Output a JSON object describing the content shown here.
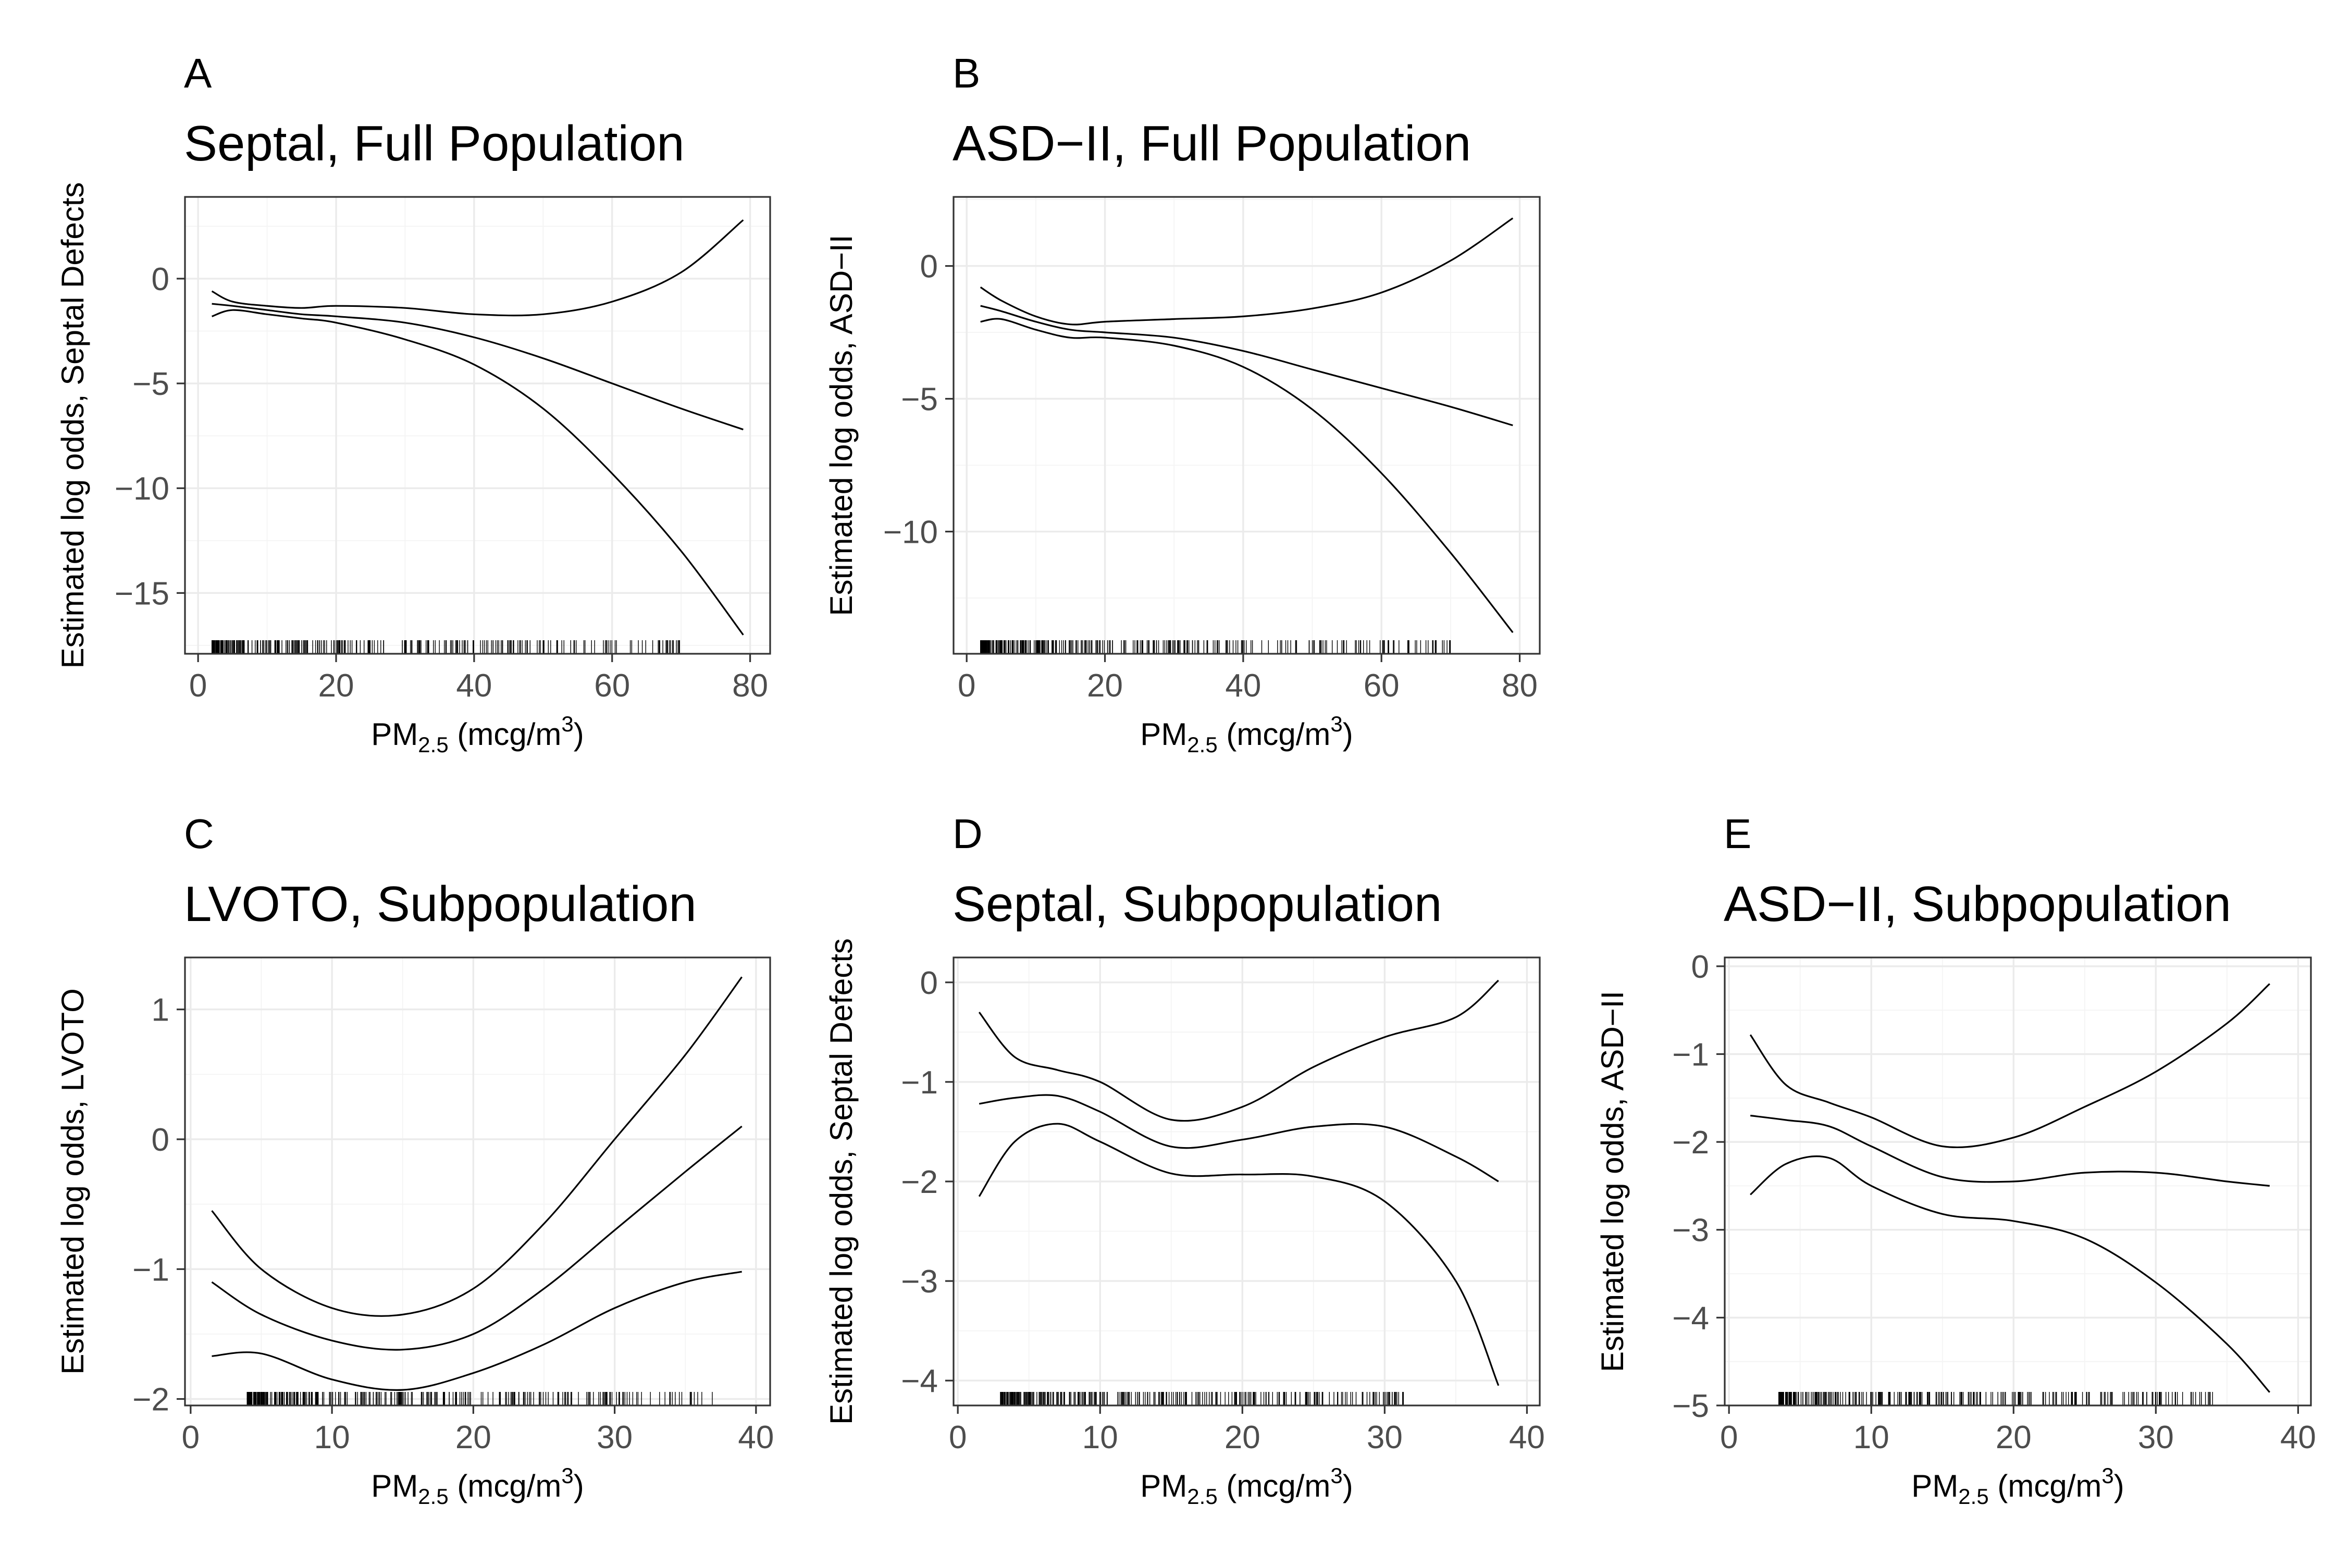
{
  "panels": [
    {
      "letter": "A",
      "title": "Septal, Full Population",
      "ylabel": "Estimated log odds, Septal Defects",
      "xlabel": "PM2.5 (mcg/m3)",
      "xlim": [
        -1.9,
        82.9
      ],
      "ylim": [
        -17.9,
        3.9
      ],
      "xticks": [
        0,
        20,
        40,
        60,
        80
      ],
      "yticks": [
        0,
        -5,
        -10,
        -15
      ],
      "xtick_labels": [
        "0",
        "20",
        "40",
        "60",
        "80"
      ],
      "ytick_labels": [
        "0",
        "−5",
        "−10",
        "−15"
      ],
      "rug_range": [
        2,
        70
      ],
      "x": [
        2,
        5,
        10,
        15,
        20,
        30,
        40,
        50,
        60,
        70,
        79
      ],
      "fit": [
        -1.2,
        -1.3,
        -1.5,
        -1.7,
        -1.8,
        -2.1,
        -2.8,
        -3.8,
        -5.0,
        -6.2,
        -7.2
      ],
      "upper": [
        -0.6,
        -1.1,
        -1.3,
        -1.4,
        -1.3,
        -1.4,
        -1.7,
        -1.7,
        -1.1,
        0.3,
        2.8
      ],
      "lower": [
        -1.8,
        -1.5,
        -1.7,
        -1.9,
        -2.1,
        -2.9,
        -4.1,
        -6.2,
        -9.3,
        -13.0,
        -17.0
      ]
    },
    {
      "letter": "B",
      "title": "ASD−II, Full Population",
      "ylabel": "Estimated log odds, ASD−II",
      "xlabel": "PM2.5 (mcg/m3)",
      "xlim": [
        -1.9,
        82.9
      ],
      "ylim": [
        -14.6,
        2.6
      ],
      "xticks": [
        0,
        20,
        40,
        60,
        80
      ],
      "yticks": [
        0,
        -5,
        -10
      ],
      "xtick_labels": [
        "0",
        "20",
        "40",
        "60",
        "80"
      ],
      "ytick_labels": [
        "0",
        "−5",
        "−10"
      ],
      "rug_range": [
        2,
        70
      ],
      "x": [
        2,
        5,
        10,
        15,
        20,
        30,
        40,
        50,
        60,
        70,
        79
      ],
      "fit": [
        -1.5,
        -1.7,
        -2.1,
        -2.4,
        -2.5,
        -2.7,
        -3.2,
        -3.9,
        -4.6,
        -5.3,
        -6.0
      ],
      "upper": [
        -0.8,
        -1.3,
        -1.9,
        -2.2,
        -2.1,
        -2.0,
        -1.9,
        -1.6,
        -1.0,
        0.2,
        1.8
      ],
      "lower": [
        -2.1,
        -2.0,
        -2.4,
        -2.7,
        -2.7,
        -3.0,
        -3.8,
        -5.4,
        -7.8,
        -10.8,
        -13.8
      ]
    },
    {
      "letter": "C",
      "title": "LVOTO, Subpopulation",
      "ylabel": "Estimated log odds, LVOTO",
      "xlabel": "PM2.5 (mcg/m3)",
      "xlim": [
        -0.4,
        41.0
      ],
      "ylim": [
        -2.05,
        1.4
      ],
      "xticks": [
        0,
        10,
        20,
        30,
        40
      ],
      "yticks": [
        1,
        0,
        -1,
        -2
      ],
      "xtick_labels": [
        "0",
        "10",
        "20",
        "30",
        "40"
      ],
      "ytick_labels": [
        "1",
        "0",
        "−1",
        "−2"
      ],
      "rug_range": [
        4,
        37
      ],
      "x": [
        1.5,
        5,
        10,
        15,
        20,
        25,
        30,
        35,
        39
      ],
      "fit": [
        -1.1,
        -1.35,
        -1.55,
        -1.62,
        -1.5,
        -1.15,
        -0.7,
        -0.25,
        0.1
      ],
      "upper": [
        -0.55,
        -1.0,
        -1.3,
        -1.35,
        -1.15,
        -0.65,
        0.0,
        0.65,
        1.25
      ],
      "lower": [
        -1.67,
        -1.65,
        -1.85,
        -1.93,
        -1.8,
        -1.58,
        -1.3,
        -1.1,
        -1.02
      ]
    },
    {
      "letter": "D",
      "title": "Septal, Subpopulation",
      "ylabel": "Estimated log odds, Septal Defects",
      "xlabel": "PM2.5 (mcg/m3)",
      "xlim": [
        -0.3,
        40.9
      ],
      "ylim": [
        -4.25,
        0.25
      ],
      "xticks": [
        0,
        10,
        20,
        30,
        40
      ],
      "yticks": [
        0,
        -1,
        -2,
        -3,
        -4
      ],
      "xtick_labels": [
        "0",
        "10",
        "20",
        "30",
        "40"
      ],
      "ytick_labels": [
        "0",
        "−1",
        "−2",
        "−3",
        "−4"
      ],
      "rug_range": [
        3,
        32
      ],
      "x": [
        1.5,
        4,
        7,
        10,
        15,
        20,
        25,
        30,
        35,
        38
      ],
      "fit": [
        -1.22,
        -1.16,
        -1.14,
        -1.3,
        -1.65,
        -1.58,
        -1.45,
        -1.45,
        -1.75,
        -2.0
      ],
      "upper": [
        -0.3,
        -0.75,
        -0.88,
        -1.0,
        -1.38,
        -1.25,
        -0.85,
        -0.55,
        -0.35,
        0.02
      ],
      "lower": [
        -2.15,
        -1.6,
        -1.42,
        -1.6,
        -1.92,
        -1.93,
        -1.95,
        -2.2,
        -3.0,
        -4.05
      ]
    },
    {
      "letter": "E",
      "title": "ASD−II, Subpopulation",
      "ylabel": "Estimated log odds, ASD−II",
      "xlabel": "PM2.5 (mcg/m3)",
      "xlim": [
        -0.3,
        40.9
      ],
      "ylim": [
        -5.0,
        0.1
      ],
      "xticks": [
        0,
        10,
        20,
        30,
        40
      ],
      "yticks": [
        0,
        -1,
        -2,
        -3,
        -4,
        -5
      ],
      "xtick_labels": [
        "0",
        "10",
        "20",
        "30",
        "40"
      ],
      "ytick_labels": [
        "0",
        "−1",
        "−2",
        "−3",
        "−4",
        "−5"
      ],
      "rug_range": [
        3.5,
        34
      ],
      "x": [
        1.5,
        4,
        7,
        10,
        15,
        20,
        25,
        30,
        35,
        38
      ],
      "fit": [
        -1.7,
        -1.75,
        -1.82,
        -2.05,
        -2.4,
        -2.45,
        -2.35,
        -2.35,
        -2.45,
        -2.5
      ],
      "upper": [
        -0.78,
        -1.35,
        -1.55,
        -1.72,
        -2.05,
        -1.95,
        -1.6,
        -1.2,
        -0.65,
        -0.2
      ],
      "lower": [
        -2.6,
        -2.25,
        -2.18,
        -2.5,
        -2.82,
        -2.9,
        -3.1,
        -3.6,
        -4.3,
        -4.85
      ]
    }
  ]
}
